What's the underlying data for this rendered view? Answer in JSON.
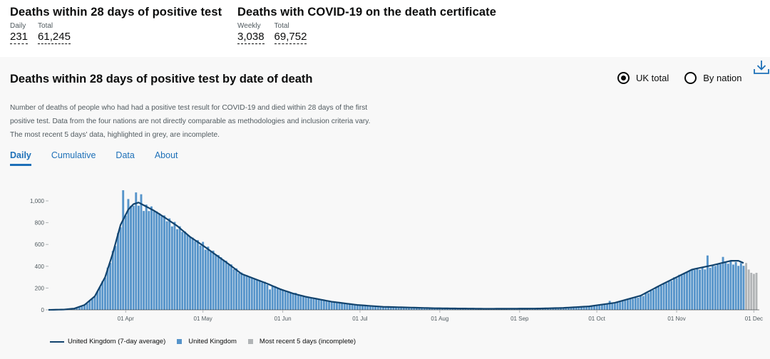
{
  "headlines": [
    {
      "title": "Deaths within 28 days of positive test",
      "metrics": [
        {
          "label": "Daily",
          "value": "231"
        },
        {
          "label": "Total",
          "value": "61,245"
        }
      ]
    },
    {
      "title": "Deaths with COVID-19 on the death certificate",
      "metrics": [
        {
          "label": "Weekly",
          "value": "3,038"
        },
        {
          "label": "Total",
          "value": "69,752"
        }
      ]
    }
  ],
  "card": {
    "title": "Deaths within 28 days of positive test by date of death",
    "description": "Number of deaths of people who had had a positive test result for COVID-19 and died within 28 days of the first positive test. Data from the four nations are not directly comparable as methodologies and inclusion criteria vary. The most recent 5 days' data, highlighted in grey, are incomplete.",
    "radios": [
      {
        "label": "UK total",
        "checked": true
      },
      {
        "label": "By nation",
        "checked": false
      }
    ],
    "download_icon": "download-icon",
    "tabs": [
      {
        "label": "Daily",
        "active": true
      },
      {
        "label": "Cumulative",
        "active": false
      },
      {
        "label": "Data",
        "active": false
      },
      {
        "label": "About",
        "active": false
      }
    ]
  },
  "colors": {
    "bar": "#5694ca",
    "line": "#12436d",
    "incomplete": "#b1b4b6",
    "link": "#1d70b8"
  },
  "chart_data": {
    "type": "bar",
    "title": "Deaths within 28 days of positive test by date of death",
    "x_start": "2020-03-02",
    "x_end": "2020-12-01",
    "x_ticks": [
      "01 Apr",
      "01 May",
      "01 Jun",
      "01 Jul",
      "01 Aug",
      "01 Sep",
      "01 Oct",
      "01 Nov",
      "01 Dec"
    ],
    "x_tick_day_index": [
      30,
      60,
      91,
      121,
      152,
      183,
      213,
      244,
      274
    ],
    "y_ticks": [
      "0",
      "200",
      "400",
      "600",
      "800",
      "1,000"
    ],
    "ylim": [
      0,
      1000
    ],
    "series": [
      {
        "name": "United Kingdom",
        "kind": "bar",
        "anchors": [
          [
            0,
            1
          ],
          [
            6,
            3
          ],
          [
            10,
            10
          ],
          [
            14,
            40
          ],
          [
            18,
            120
          ],
          [
            22,
            300
          ],
          [
            25,
            520
          ],
          [
            28,
            760
          ],
          [
            31,
            900
          ],
          [
            33,
            960
          ],
          [
            35,
            980
          ],
          [
            37,
            940
          ],
          [
            41,
            900
          ],
          [
            45,
            840
          ],
          [
            50,
            760
          ],
          [
            55,
            660
          ],
          [
            60,
            590
          ],
          [
            65,
            510
          ],
          [
            70,
            420
          ],
          [
            75,
            330
          ],
          [
            80,
            280
          ],
          [
            85,
            240
          ],
          [
            90,
            190
          ],
          [
            95,
            150
          ],
          [
            100,
            120
          ],
          [
            110,
            75
          ],
          [
            120,
            45
          ],
          [
            130,
            30
          ],
          [
            150,
            15
          ],
          [
            170,
            10
          ],
          [
            190,
            12
          ],
          [
            200,
            18
          ],
          [
            210,
            30
          ],
          [
            220,
            60
          ],
          [
            230,
            120
          ],
          [
            238,
            220
          ],
          [
            244,
            300
          ],
          [
            250,
            360
          ],
          [
            258,
            400
          ],
          [
            265,
            430
          ],
          [
            270,
            410
          ]
        ],
        "spikes": [
          [
            29,
            1070
          ],
          [
            31,
            1005
          ],
          [
            34,
            1040
          ],
          [
            36,
            1020
          ],
          [
            40,
            920
          ],
          [
            60,
            600
          ],
          [
            86,
            180
          ],
          [
            96,
            160
          ],
          [
            218,
            85
          ],
          [
            256,
            480
          ],
          [
            262,
            480
          ]
        ],
        "value_scale": "daily deaths"
      },
      {
        "name": "United Kingdom (7-day average)",
        "kind": "line",
        "anchors": [
          [
            0,
            0
          ],
          [
            6,
            3
          ],
          [
            10,
            12
          ],
          [
            14,
            45
          ],
          [
            18,
            125
          ],
          [
            22,
            300
          ],
          [
            25,
            520
          ],
          [
            28,
            780
          ],
          [
            31,
            920
          ],
          [
            33,
            970
          ],
          [
            35,
            985
          ],
          [
            37,
            960
          ],
          [
            41,
            910
          ],
          [
            45,
            850
          ],
          [
            50,
            770
          ],
          [
            55,
            670
          ],
          [
            60,
            590
          ],
          [
            65,
            505
          ],
          [
            70,
            420
          ],
          [
            75,
            330
          ],
          [
            80,
            285
          ],
          [
            85,
            240
          ],
          [
            90,
            190
          ],
          [
            95,
            150
          ],
          [
            100,
            120
          ],
          [
            110,
            75
          ],
          [
            120,
            45
          ],
          [
            130,
            28
          ],
          [
            150,
            15
          ],
          [
            170,
            10
          ],
          [
            190,
            12
          ],
          [
            200,
            18
          ],
          [
            210,
            32
          ],
          [
            220,
            65
          ],
          [
            230,
            130
          ],
          [
            238,
            230
          ],
          [
            244,
            300
          ],
          [
            250,
            370
          ],
          [
            258,
            410
          ],
          [
            265,
            450
          ],
          [
            268,
            450
          ],
          [
            270,
            430
          ]
        ]
      },
      {
        "name": "Most recent 5 days (incomplete)",
        "kind": "bar",
        "days": [
          271,
          272,
          273,
          274,
          275
        ],
        "values": [
          430,
          370,
          340,
          330,
          340
        ]
      }
    ],
    "legend": [
      "United Kingdom (7-day average)",
      "United Kingdom",
      "Most recent 5 days (incomplete)"
    ],
    "legend_position": "bottom-left"
  }
}
